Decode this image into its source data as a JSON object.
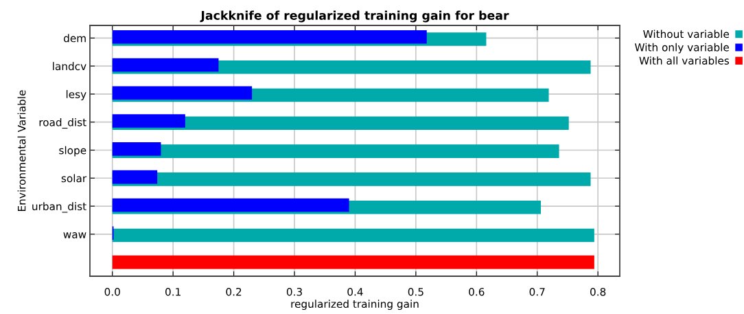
{
  "chart_data": {
    "type": "bar",
    "orientation": "horizontal",
    "title": "Jackknife of regularized training gain for bear",
    "xlabel": "regularized training gain",
    "ylabel": "Environmental Variable",
    "categories": [
      "dem",
      "landcv",
      "lesy",
      "road_dist",
      "slope",
      "solar",
      "urban_dist",
      "waw",
      null
    ],
    "series": [
      {
        "name": "Without variable",
        "color": "#00aaaa",
        "values": [
          0.616,
          0.788,
          0.719,
          0.752,
          0.736,
          0.788,
          0.706,
          0.794,
          null
        ]
      },
      {
        "name": "With only variable",
        "color": "#0000ff",
        "values": [
          0.518,
          0.175,
          0.23,
          0.12,
          0.08,
          0.074,
          0.39,
          0.002,
          null
        ]
      },
      {
        "name": "With all variables",
        "color": "#ff0000",
        "values": [
          null,
          null,
          null,
          null,
          null,
          null,
          null,
          null,
          0.794
        ]
      }
    ],
    "xlim": [
      -0.037,
      0.836
    ],
    "xticks": [
      {
        "value": 0,
        "label": "0.0"
      },
      0.1,
      0.2,
      0.3,
      0.4,
      0.5,
      0.6,
      0.7,
      0.8
    ],
    "grid": true,
    "legend": "top right"
  }
}
